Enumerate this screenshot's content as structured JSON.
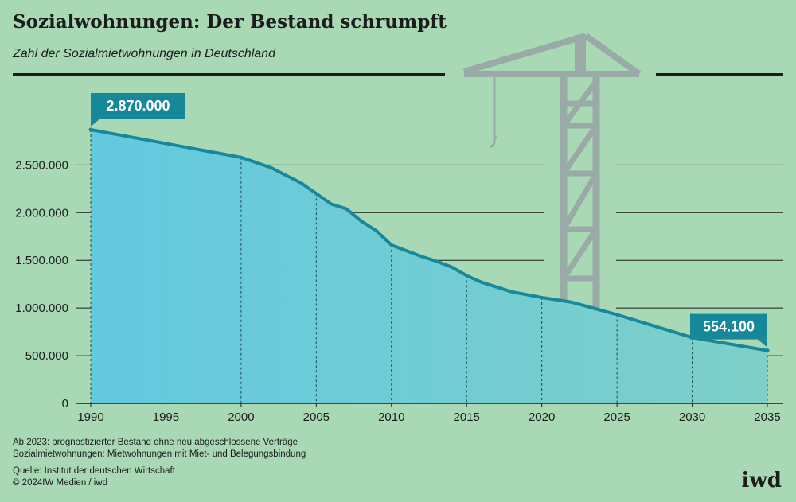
{
  "header": {
    "title": "Sozialwohnungen: Der Bestand schrumpft",
    "subtitle": "Zahl der Sozialmietwohnungen in Deutschland"
  },
  "footer": {
    "note1": "Ab 2023: prognostizierter Bestand ohne neu abgeschlossene Verträge",
    "note2": "Sozialmietwohnungen: Mietwohnungen mit Miet- und Belegungsbindung",
    "source": "Quelle: Institut der deutschen Wirtschaft",
    "copyright": "© 2024IW Medien / iwd",
    "brand": "iwd"
  },
  "colors": {
    "background": "#a8d8b4",
    "line": "#17879a",
    "area_left": "#63c9e0",
    "area_right": "#7ecfc8",
    "callout": "#17879a",
    "crane": "#9aaaa6"
  },
  "chart_data": {
    "type": "area",
    "title": "Sozialwohnungen: Der Bestand schrumpft",
    "subtitle": "Zahl der Sozialmietwohnungen in Deutschland",
    "xlabel": "",
    "ylabel": "",
    "xlim": [
      1990,
      2035
    ],
    "ylim": [
      0,
      2870000
    ],
    "x_ticks": [
      1990,
      1995,
      2000,
      2005,
      2010,
      2015,
      2020,
      2025,
      2030,
      2035
    ],
    "y_ticks": [
      0,
      500000,
      1000000,
      1500000,
      2000000,
      2500000
    ],
    "y_tick_labels": [
      "0",
      "500.000",
      "1.000.000",
      "1.500.000",
      "2.000.000",
      "2.500.000"
    ],
    "grid": true,
    "series": [
      {
        "x": [
          1990,
          2000,
          2002,
          2004,
          2006,
          2007,
          2008,
          2009,
          2010,
          2012,
          2013,
          2014,
          2015,
          2016,
          2018,
          2020,
          2022,
          2025,
          2030,
          2035
        ],
        "values": [
          2870000,
          2580000,
          2470000,
          2310000,
          2090000,
          2040000,
          1910000,
          1810000,
          1660000,
          1540000,
          1490000,
          1430000,
          1340000,
          1270000,
          1170000,
          1110000,
          1060000,
          930000,
          690000,
          554100
        ]
      }
    ],
    "annotations": [
      {
        "x": 1990,
        "y": 2870000,
        "label": "2.870.000"
      },
      {
        "x": 2035,
        "y": 554100,
        "label": "554.100"
      }
    ]
  }
}
